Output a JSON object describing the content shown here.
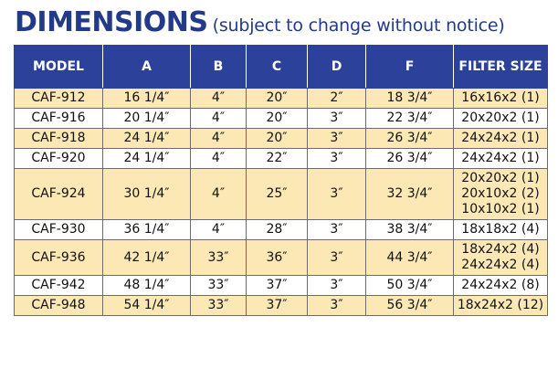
{
  "heading": {
    "main": "DIMENSIONS",
    "sub": "(subject to change without notice)"
  },
  "colors": {
    "title": "#233a8a",
    "header_bg": "#2c4199",
    "stripe": "#fbe8b5"
  },
  "table": {
    "columns": [
      "MODEL",
      "A",
      "B",
      "C",
      "D",
      "F",
      "FILTER SIZE"
    ],
    "rows": [
      {
        "model": "CAF-912",
        "a": "16 1/4″",
        "b": "4″",
        "c": "20″",
        "d": "2″",
        "f": "18 3/4″",
        "filter": [
          "16x16x2 (1)"
        ]
      },
      {
        "model": "CAF-916",
        "a": "20 1/4″",
        "b": "4″",
        "c": "20″",
        "d": "3″",
        "f": "22 3/4″",
        "filter": [
          "20x20x2 (1)"
        ]
      },
      {
        "model": "CAF-918",
        "a": "24 1/4″",
        "b": "4″",
        "c": "20″",
        "d": "3″",
        "f": "26 3/4″",
        "filter": [
          "24x24x2 (1)"
        ]
      },
      {
        "model": "CAF-920",
        "a": "24 1/4″",
        "b": "4″",
        "c": "22″",
        "d": "3″",
        "f": "26 3/4″",
        "filter": [
          "24x24x2 (1)"
        ]
      },
      {
        "model": "CAF-924",
        "a": "30 1/4″",
        "b": "4″",
        "c": "25″",
        "d": "3″",
        "f": "32 3/4″",
        "filter": [
          "20x20x2 (1)",
          "20x10x2 (2)",
          "10x10x2 (1)"
        ]
      },
      {
        "model": "CAF-930",
        "a": "36 1/4″",
        "b": "4″",
        "c": "28″",
        "d": "3″",
        "f": "38 3/4″",
        "filter": [
          "18x18x2 (4)"
        ]
      },
      {
        "model": "CAF-936",
        "a": "42 1/4″",
        "b": "33″",
        "c": "36″",
        "d": "3″",
        "f": "44 3/4″",
        "filter": [
          "18x24x2 (4)",
          "24x24x2 (4)"
        ]
      },
      {
        "model": "CAF-942",
        "a": "48 1/4″",
        "b": "33″",
        "c": "37″",
        "d": "3″",
        "f": "50 3/4″",
        "filter": [
          "24x24x2 (8)"
        ]
      },
      {
        "model": "CAF-948",
        "a": "54 1/4″",
        "b": "33″",
        "c": "37″",
        "d": "3″",
        "f": "56 3/4″",
        "filter": [
          "18x24x2 (12)"
        ]
      }
    ]
  }
}
